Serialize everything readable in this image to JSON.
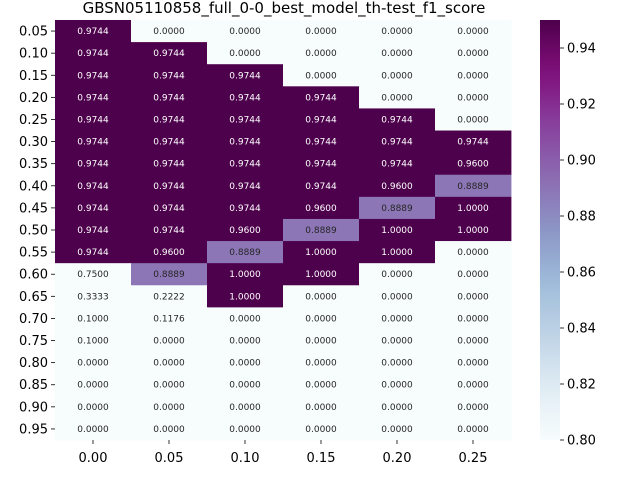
{
  "chart_data": {
    "type": "heatmap",
    "title": "GBSN05110858_full_0-0_best_model_th-test_f1_score",
    "x_categories": [
      "0.00",
      "0.05",
      "0.10",
      "0.15",
      "0.20",
      "0.25"
    ],
    "y_categories": [
      "0.05",
      "0.10",
      "0.15",
      "0.20",
      "0.25",
      "0.30",
      "0.35",
      "0.40",
      "0.45",
      "0.50",
      "0.55",
      "0.60",
      "0.65",
      "0.70",
      "0.75",
      "0.80",
      "0.85",
      "0.90",
      "0.95"
    ],
    "values": [
      [
        0.9744,
        0.0,
        0.0,
        0.0,
        0.0,
        0.0
      ],
      [
        0.9744,
        0.9744,
        0.0,
        0.0,
        0.0,
        0.0
      ],
      [
        0.9744,
        0.9744,
        0.9744,
        0.0,
        0.0,
        0.0
      ],
      [
        0.9744,
        0.9744,
        0.9744,
        0.9744,
        0.0,
        0.0
      ],
      [
        0.9744,
        0.9744,
        0.9744,
        0.9744,
        0.9744,
        0.0
      ],
      [
        0.9744,
        0.9744,
        0.9744,
        0.9744,
        0.9744,
        0.9744
      ],
      [
        0.9744,
        0.9744,
        0.9744,
        0.9744,
        0.9744,
        0.96
      ],
      [
        0.9744,
        0.9744,
        0.9744,
        0.9744,
        0.96,
        0.8889
      ],
      [
        0.9744,
        0.9744,
        0.9744,
        0.96,
        0.8889,
        1.0
      ],
      [
        0.9744,
        0.9744,
        0.96,
        0.8889,
        1.0,
        1.0
      ],
      [
        0.9744,
        0.96,
        0.8889,
        1.0,
        1.0,
        0.0
      ],
      [
        0.75,
        0.8889,
        1.0,
        1.0,
        0.0,
        0.0
      ],
      [
        0.3333,
        0.2222,
        1.0,
        0.0,
        0.0,
        0.0
      ],
      [
        0.1,
        0.1176,
        0.0,
        0.0,
        0.0,
        0.0
      ],
      [
        0.1,
        0.0,
        0.0,
        0.0,
        0.0,
        0.0
      ],
      [
        0.0,
        0.0,
        0.0,
        0.0,
        0.0,
        0.0
      ],
      [
        0.0,
        0.0,
        0.0,
        0.0,
        0.0,
        0.0
      ],
      [
        0.0,
        0.0,
        0.0,
        0.0,
        0.0,
        0.0
      ],
      [
        0.0,
        0.0,
        0.0,
        0.0,
        0.0,
        0.0
      ]
    ],
    "value_format_decimals": 4,
    "color_range": [
      0.8,
      0.95
    ],
    "colormap": "BuPu",
    "colorbar_ticks": [
      "0.80",
      "0.82",
      "0.84",
      "0.86",
      "0.88",
      "0.90",
      "0.92",
      "0.94"
    ],
    "xlabel": "",
    "ylabel": "",
    "grid": false,
    "legend": "colorbar-right"
  }
}
